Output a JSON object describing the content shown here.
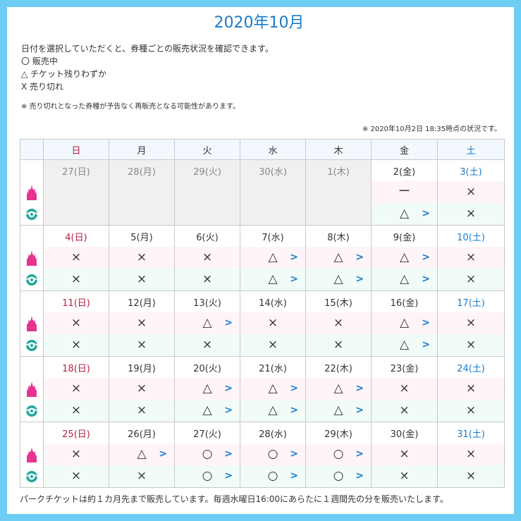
{
  "title": "2020年10月",
  "info_lines": [
    "日付を選択していただくと、券種ごとの販売状況を確認できます。",
    "〇 販売中",
    "△ チケット残りわずか",
    "X 売り切れ"
  ],
  "note": "※ 売り切れとなった券種が予告なく再販売となる可能性があります。",
  "status": "※ 2020年10月2日 18:35時点の状況です。",
  "footer": "パークチケットは約１カ月先まで販売しています。毎週水曜日16:00にあらたに１週間先の分を販売いたします。",
  "weekdays": [
    "日",
    "月",
    "火",
    "水",
    "木",
    "金",
    "土"
  ],
  "colors": {
    "border": "#6ecdf2",
    "title": "#1a7bc9",
    "sunday": "#b5213f",
    "saturday": "#1a7bc9",
    "land": "#e6338f",
    "sea": "#1fa89b"
  },
  "icons": {
    "land": "castle-icon",
    "sea": "globe-icon"
  },
  "weeks": [
    [
      {
        "date": "27(日)",
        "past": true,
        "land": "",
        "sea": "",
        "land_arrow": false,
        "sea_arrow": false
      },
      {
        "date": "28(月)",
        "past": true,
        "land": "",
        "sea": "",
        "land_arrow": false,
        "sea_arrow": false
      },
      {
        "date": "29(火)",
        "past": true,
        "land": "",
        "sea": "",
        "land_arrow": false,
        "sea_arrow": false
      },
      {
        "date": "30(水)",
        "past": true,
        "land": "",
        "sea": "",
        "land_arrow": false,
        "sea_arrow": false
      },
      {
        "date": "1(木)",
        "past": true,
        "land": "",
        "sea": "",
        "land_arrow": false,
        "sea_arrow": false
      },
      {
        "date": "2(金)",
        "past": false,
        "land": "ー",
        "sea": "△",
        "land_arrow": false,
        "sea_arrow": true
      },
      {
        "date": "3(土)",
        "past": false,
        "land": "×",
        "sea": "×",
        "land_arrow": false,
        "sea_arrow": false
      }
    ],
    [
      {
        "date": "4(日)",
        "past": false,
        "land": "×",
        "sea": "×",
        "land_arrow": false,
        "sea_arrow": false
      },
      {
        "date": "5(月)",
        "past": false,
        "land": "×",
        "sea": "×",
        "land_arrow": false,
        "sea_arrow": false
      },
      {
        "date": "6(火)",
        "past": false,
        "land": "×",
        "sea": "×",
        "land_arrow": false,
        "sea_arrow": false
      },
      {
        "date": "7(水)",
        "past": false,
        "land": "△",
        "sea": "△",
        "land_arrow": true,
        "sea_arrow": true
      },
      {
        "date": "8(木)",
        "past": false,
        "land": "△",
        "sea": "△",
        "land_arrow": true,
        "sea_arrow": true
      },
      {
        "date": "9(金)",
        "past": false,
        "land": "△",
        "sea": "△",
        "land_arrow": true,
        "sea_arrow": true
      },
      {
        "date": "10(土)",
        "past": false,
        "land": "×",
        "sea": "×",
        "land_arrow": false,
        "sea_arrow": false
      }
    ],
    [
      {
        "date": "11(日)",
        "past": false,
        "land": "×",
        "sea": "×",
        "land_arrow": false,
        "sea_arrow": false
      },
      {
        "date": "12(月)",
        "past": false,
        "land": "×",
        "sea": "×",
        "land_arrow": false,
        "sea_arrow": false
      },
      {
        "date": "13(火)",
        "past": false,
        "land": "△",
        "sea": "×",
        "land_arrow": true,
        "sea_arrow": false
      },
      {
        "date": "14(水)",
        "past": false,
        "land": "×",
        "sea": "×",
        "land_arrow": false,
        "sea_arrow": false
      },
      {
        "date": "15(木)",
        "past": false,
        "land": "×",
        "sea": "×",
        "land_arrow": false,
        "sea_arrow": false
      },
      {
        "date": "16(金)",
        "past": false,
        "land": "△",
        "sea": "△",
        "land_arrow": true,
        "sea_arrow": true
      },
      {
        "date": "17(土)",
        "past": false,
        "land": "×",
        "sea": "×",
        "land_arrow": false,
        "sea_arrow": false
      }
    ],
    [
      {
        "date": "18(日)",
        "past": false,
        "land": "×",
        "sea": "×",
        "land_arrow": false,
        "sea_arrow": false
      },
      {
        "date": "19(月)",
        "past": false,
        "land": "×",
        "sea": "×",
        "land_arrow": false,
        "sea_arrow": false
      },
      {
        "date": "20(火)",
        "past": false,
        "land": "△",
        "sea": "△",
        "land_arrow": true,
        "sea_arrow": true
      },
      {
        "date": "21(水)",
        "past": false,
        "land": "△",
        "sea": "△",
        "land_arrow": true,
        "sea_arrow": true
      },
      {
        "date": "22(木)",
        "past": false,
        "land": "△",
        "sea": "△",
        "land_arrow": true,
        "sea_arrow": true
      },
      {
        "date": "23(金)",
        "past": false,
        "land": "×",
        "sea": "×",
        "land_arrow": false,
        "sea_arrow": false
      },
      {
        "date": "24(土)",
        "past": false,
        "land": "×",
        "sea": "×",
        "land_arrow": false,
        "sea_arrow": false
      }
    ],
    [
      {
        "date": "25(日)",
        "past": false,
        "land": "×",
        "sea": "×",
        "land_arrow": false,
        "sea_arrow": false
      },
      {
        "date": "26(月)",
        "past": false,
        "land": "△",
        "sea": "×",
        "land_arrow": true,
        "sea_arrow": false
      },
      {
        "date": "27(火)",
        "past": false,
        "land": "○",
        "sea": "○",
        "land_arrow": true,
        "sea_arrow": true
      },
      {
        "date": "28(水)",
        "past": false,
        "land": "○",
        "sea": "○",
        "land_arrow": true,
        "sea_arrow": true
      },
      {
        "date": "29(木)",
        "past": false,
        "land": "○",
        "sea": "○",
        "land_arrow": true,
        "sea_arrow": true
      },
      {
        "date": "30(金)",
        "past": false,
        "land": "×",
        "sea": "×",
        "land_arrow": false,
        "sea_arrow": false
      },
      {
        "date": "31(土)",
        "past": false,
        "land": "×",
        "sea": "×",
        "land_arrow": false,
        "sea_arrow": false
      }
    ]
  ]
}
